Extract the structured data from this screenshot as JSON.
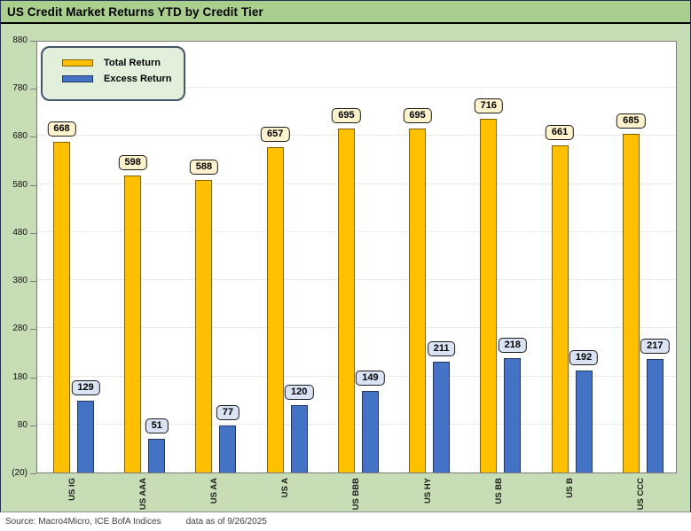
{
  "title": "US Credit Market Returns YTD by Credit Tier",
  "chart_data": {
    "type": "bar",
    "title": "US Credit Market Returns YTD by Credit Tier",
    "categories": [
      "US IG",
      "US AAA",
      "US AA",
      "US A",
      "US BBB",
      "US HY",
      "US BB",
      "US B",
      "US CCC"
    ],
    "series": [
      {
        "name": "Total Return",
        "values": [
          668,
          598,
          588,
          657,
          695,
          695,
          716,
          661,
          685
        ],
        "color": "#FFC000",
        "border": "#806000",
        "label_bg": "#FFF2CC"
      },
      {
        "name": "Excess Return",
        "values": [
          129,
          51,
          77,
          120,
          149,
          211,
          218,
          192,
          217
        ],
        "color": "#4472C4",
        "border": "#1F3864",
        "label_bg": "#DAE3F3"
      }
    ],
    "ylim": [
      -20,
      880
    ],
    "yticks": [
      {
        "value": 880,
        "label": "880"
      },
      {
        "value": 780,
        "label": "780"
      },
      {
        "value": 680,
        "label": "680"
      },
      {
        "value": 580,
        "label": "580"
      },
      {
        "value": 480,
        "label": "480"
      },
      {
        "value": 380,
        "label": "380"
      },
      {
        "value": 280,
        "label": "280"
      },
      {
        "value": 180,
        "label": "180"
      },
      {
        "value": 80,
        "label": "80"
      },
      {
        "value": -20,
        "label": "(20)"
      }
    ],
    "gridline_values": [
      780,
      680,
      580,
      480,
      380,
      280,
      180,
      80
    ],
    "grid": "horizontal",
    "legend_position": "top-left",
    "data_labels": true,
    "xlabel": "",
    "ylabel": ""
  },
  "legend": {
    "items": [
      {
        "label": "Total Return",
        "color": "#FFC000",
        "border": "#806000"
      },
      {
        "label": "Excess Return",
        "color": "#4472C4",
        "border": "#1F3864"
      }
    ]
  },
  "footer": {
    "source": "Source: Macro4Micro, ICE BofA Indices",
    "as_of": "data as of 9/26/2025"
  },
  "colors": {
    "title_bar_bg": "#A9CE8E",
    "body_bg": "#C7DDB5",
    "plot_bg": "#FFFFFF",
    "plot_border": "#7A7A7A",
    "gridline": "#E9E9E9",
    "legend_bg": "#E2EFDA",
    "legend_border": "#44546A",
    "total_return_fill": "#FFC000",
    "excess_return_fill": "#4472C4",
    "total_label_bg": "#FFF2CC",
    "excess_label_bg": "#DAE3F3",
    "title_underline": "#000000"
  }
}
